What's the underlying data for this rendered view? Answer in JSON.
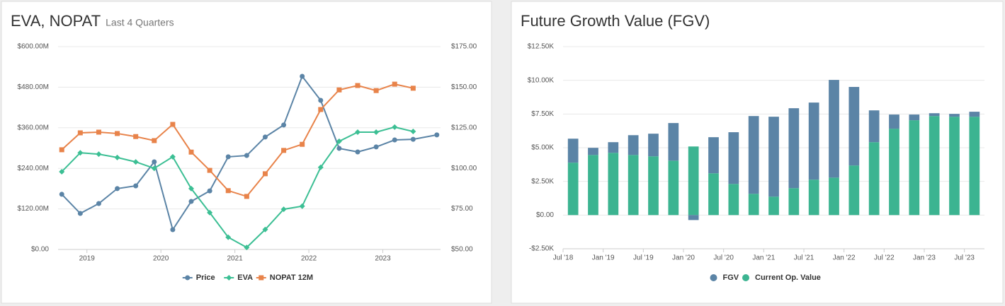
{
  "chart_data": [
    {
      "type": "line",
      "title": "EVA, NOPAT",
      "subtitle": "Last 4 Quarters",
      "x": [
        2018.66,
        2018.91,
        2019.16,
        2019.41,
        2019.66,
        2019.91,
        2020.16,
        2020.41,
        2020.66,
        2020.91,
        2021.16,
        2021.41,
        2021.66,
        2021.91,
        2022.16,
        2022.41,
        2022.66,
        2022.91,
        2023.16,
        2023.41,
        2023.73
      ],
      "xlim": [
        2018.61,
        2023.78
      ],
      "xticks": [
        2019,
        2020,
        2021,
        2022,
        2023
      ],
      "ylim": [
        0,
        600
      ],
      "yticks": [
        {
          "value": 0,
          "label": "$0.00"
        },
        {
          "value": 120,
          "label": "$120.00M"
        },
        {
          "value": 240,
          "label": "$240.00M"
        },
        {
          "value": 360,
          "label": "$360.00M"
        },
        {
          "value": 480,
          "label": "$480.00M"
        },
        {
          "value": 600,
          "label": "$600.00M"
        }
      ],
      "y2lim": [
        50,
        175
      ],
      "y2ticks": [
        {
          "value": 50,
          "label": "$50.00"
        },
        {
          "value": 75,
          "label": "$75.00"
        },
        {
          "value": 100,
          "label": "$100.00"
        },
        {
          "value": 125,
          "label": "$125.00"
        },
        {
          "value": 150,
          "label": "$150.00"
        },
        {
          "value": 175,
          "label": "$175.00"
        }
      ],
      "grid": true,
      "series": [
        {
          "name": "Price",
          "color": "#5b84a6",
          "marker": "circle",
          "axis": "y2",
          "values": [
            84.0,
            72.2,
            78.3,
            87.5,
            89.2,
            104.0,
            62.2,
            79.6,
            86.1,
            107.1,
            107.9,
            119.3,
            126.7,
            156.7,
            141.9,
            112.3,
            110.1,
            113.2,
            117.5,
            117.9,
            120.6
          ]
        },
        {
          "name": "EVA",
          "color": "#3cbf94",
          "marker": "diamond",
          "values": [
            230,
            286,
            282,
            272,
            259,
            240,
            274,
            180,
            109,
            36,
            6,
            59,
            119,
            128,
            243,
            320,
            347,
            347,
            362,
            349,
            null
          ]
        },
        {
          "name": "NOPAT 12M",
          "color": "#e8834a",
          "marker": "square",
          "values": [
            295,
            345,
            347,
            343,
            334,
            322,
            370,
            288,
            234,
            174,
            157,
            224,
            293,
            311,
            414,
            472,
            485,
            470,
            489,
            477,
            null
          ]
        }
      ]
    },
    {
      "type": "bar",
      "title": "Future Growth Value (FGV)",
      "stacked": true,
      "categories": [
        "Jul '18",
        null,
        "Jan '19",
        null,
        "Jul '19",
        null,
        "Jan '20",
        null,
        "Jul '20",
        null,
        "Jan '21",
        null,
        "Jul '21",
        null,
        "Jan '22",
        null,
        "Jul '22",
        null,
        "Jan '23",
        null,
        "Jul '23"
      ],
      "ylim": [
        -2.5,
        12.5
      ],
      "yticks": [
        {
          "value": -2.5,
          "label": "-$2.50K"
        },
        {
          "value": 0,
          "label": "$0.00"
        },
        {
          "value": 2.5,
          "label": "$2.50K"
        },
        {
          "value": 5,
          "label": "$5.00K"
        },
        {
          "value": 7.5,
          "label": "$7.50K"
        },
        {
          "value": 10,
          "label": "$10.00K"
        },
        {
          "value": 12.5,
          "label": "$12.50K"
        }
      ],
      "grid": true,
      "series": [
        {
          "name": "FGV",
          "color": "#5b84a6",
          "values": [
            1.78,
            0.53,
            0.79,
            1.47,
            1.68,
            2.79,
            -0.37,
            2.68,
            3.84,
            5.77,
            5.93,
            5.93,
            5.72,
            7.25,
            5.83,
            2.36,
            1.05,
            0.42,
            0.21,
            0.21,
            0.37
          ]
        },
        {
          "name": "Current Op. Value",
          "color": "#3cb491",
          "values": [
            3.89,
            4.46,
            4.62,
            4.46,
            4.36,
            4.04,
            5.09,
            3.1,
            2.31,
            1.58,
            1.37,
            2.0,
            2.63,
            2.78,
            3.68,
            5.41,
            6.41,
            7.04,
            7.35,
            7.3,
            7.3
          ]
        }
      ]
    }
  ]
}
